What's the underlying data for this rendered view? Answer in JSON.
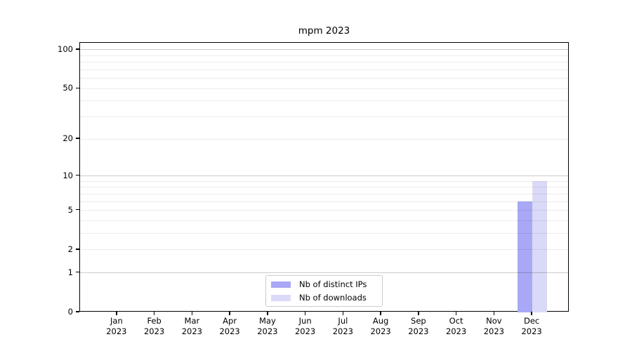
{
  "title": "mpm 2023",
  "chart_data": {
    "type": "bar",
    "title": "mpm 2023",
    "categories": [
      "Jan",
      "Feb",
      "Mar",
      "Apr",
      "May",
      "Jun",
      "Jul",
      "Aug",
      "Sep",
      "Oct",
      "Nov",
      "Dec"
    ],
    "category_year": "2023",
    "series": [
      {
        "name": "Nb of distinct IPs",
        "color": "#a8a8f6",
        "values": [
          0,
          0,
          0,
          0,
          0,
          0,
          0,
          0,
          0,
          0,
          0,
          6
        ]
      },
      {
        "name": "Nb of downloads",
        "color": "#dadaf8",
        "values": [
          0,
          0,
          0,
          0,
          0,
          0,
          0,
          0,
          0,
          0,
          0,
          9
        ]
      }
    ],
    "xlabel": "",
    "ylabel": "",
    "yscale": "log1p",
    "ylim": [
      0,
      113
    ],
    "ytick_labels": [
      100,
      50,
      20,
      10,
      5,
      2,
      1,
      0
    ],
    "major_gridlines": [
      1,
      10,
      100
    ],
    "minor_gridlines": [
      2,
      3,
      4,
      5,
      6,
      7,
      8,
      9,
      20,
      30,
      40,
      50,
      60,
      70,
      80,
      90
    ],
    "grid": true,
    "legend_position": "bottom-center"
  }
}
